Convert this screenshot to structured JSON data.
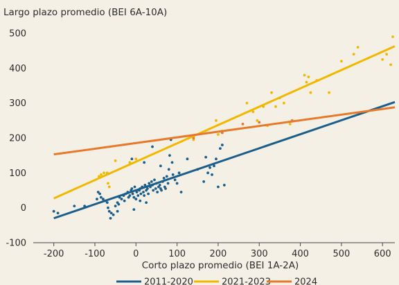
{
  "chart_data": {
    "type": "scatter",
    "title": "",
    "ylabel": "Largo plazo promedio (BEI 6A-10A)",
    "xlabel": "Corto plazo promedio (BEI 1A-2A)",
    "xlim": [
      -250,
      630
    ],
    "ylim": [
      -100,
      500
    ],
    "xticks": [
      -200,
      -100,
      0,
      100,
      200,
      300,
      400,
      500,
      600
    ],
    "yticks": [
      -100,
      0,
      100,
      200,
      300,
      400,
      500
    ],
    "xtick_labels": [
      "-200",
      "-100",
      "0",
      "100",
      "200",
      "300",
      "400",
      "500",
      "600"
    ],
    "ytick_labels": [
      "-100",
      "0",
      "100",
      "200",
      "300",
      "400",
      "500"
    ],
    "grid": false,
    "legend_position": "bottom",
    "series": [
      {
        "name": "2011-2020",
        "color": "#1b5e8c",
        "trend": [
          [
            -200,
            -30
          ],
          [
            630,
            303
          ]
        ],
        "points": [
          [
            -200,
            -10
          ],
          [
            -190,
            -15
          ],
          [
            -150,
            5
          ],
          [
            -125,
            5
          ],
          [
            -95,
            25
          ],
          [
            -92,
            45
          ],
          [
            -88,
            40
          ],
          [
            -85,
            30
          ],
          [
            -80,
            25
          ],
          [
            -75,
            20
          ],
          [
            -70,
            15
          ],
          [
            -68,
            0
          ],
          [
            -65,
            -10
          ],
          [
            -62,
            -30
          ],
          [
            -60,
            -15
          ],
          [
            -55,
            -20
          ],
          [
            -50,
            5
          ],
          [
            -45,
            15
          ],
          [
            -42,
            10
          ],
          [
            -40,
            30
          ],
          [
            -35,
            25
          ],
          [
            -30,
            35
          ],
          [
            -28,
            20
          ],
          [
            -25,
            40
          ],
          [
            -20,
            45
          ],
          [
            -18,
            30
          ],
          [
            -15,
            35
          ],
          [
            -12,
            50
          ],
          [
            -10,
            55
          ],
          [
            -8,
            40
          ],
          [
            -5,
            30
          ],
          [
            -3,
            60
          ],
          [
            0,
            25
          ],
          [
            2,
            45
          ],
          [
            5,
            35
          ],
          [
            8,
            50
          ],
          [
            10,
            55
          ],
          [
            12,
            40
          ],
          [
            15,
            60
          ],
          [
            18,
            45
          ],
          [
            20,
            35
          ],
          [
            22,
            65
          ],
          [
            25,
            50
          ],
          [
            28,
            55
          ],
          [
            30,
            40
          ],
          [
            32,
            70
          ],
          [
            35,
            60
          ],
          [
            38,
            75
          ],
          [
            40,
            65
          ],
          [
            42,
            50
          ],
          [
            45,
            80
          ],
          [
            48,
            55
          ],
          [
            50,
            70
          ],
          [
            52,
            45
          ],
          [
            55,
            60
          ],
          [
            58,
            65
          ],
          [
            60,
            55
          ],
          [
            62,
            50
          ],
          [
            65,
            75
          ],
          [
            68,
            85
          ],
          [
            70,
            60
          ],
          [
            72,
            55
          ],
          [
            75,
            90
          ],
          [
            78,
            70
          ],
          [
            80,
            110
          ],
          [
            82,
            150
          ],
          [
            85,
            195
          ],
          [
            88,
            130
          ],
          [
            90,
            95
          ],
          [
            95,
            80
          ],
          [
            100,
            70
          ],
          [
            105,
            100
          ],
          [
            110,
            45
          ],
          [
            -10,
            140
          ],
          [
            20,
            130
          ],
          [
            40,
            175
          ],
          [
            60,
            120
          ],
          [
            125,
            140
          ],
          [
            150,
            110
          ],
          [
            165,
            75
          ],
          [
            170,
            145
          ],
          [
            175,
            100
          ],
          [
            180,
            115
          ],
          [
            185,
            95
          ],
          [
            190,
            120
          ],
          [
            195,
            140
          ],
          [
            200,
            60
          ],
          [
            205,
            170
          ],
          [
            210,
            180
          ],
          [
            215,
            65
          ],
          [
            -5,
            -5
          ],
          [
            10,
            20
          ],
          [
            25,
            15
          ],
          [
            -45,
            -10
          ]
        ]
      },
      {
        "name": "2021-2023",
        "color": "#f2b800",
        "trend": [
          [
            -200,
            27
          ],
          [
            630,
            463
          ]
        ],
        "points": [
          [
            -90,
            90
          ],
          [
            -85,
            95
          ],
          [
            -78,
            100
          ],
          [
            -70,
            100
          ],
          [
            -68,
            70
          ],
          [
            -65,
            60
          ],
          [
            -50,
            135
          ],
          [
            -15,
            130
          ],
          [
            0,
            140
          ],
          [
            140,
            195
          ],
          [
            195,
            250
          ],
          [
            200,
            210
          ],
          [
            210,
            220
          ],
          [
            270,
            300
          ],
          [
            285,
            275
          ],
          [
            295,
            250
          ],
          [
            310,
            290
          ],
          [
            320,
            235
          ],
          [
            330,
            330
          ],
          [
            340,
            290
          ],
          [
            350,
            315
          ],
          [
            360,
            300
          ],
          [
            375,
            240
          ],
          [
            410,
            380
          ],
          [
            415,
            360
          ],
          [
            420,
            375
          ],
          [
            425,
            330
          ],
          [
            440,
            365
          ],
          [
            470,
            330
          ],
          [
            500,
            420
          ],
          [
            530,
            440
          ],
          [
            540,
            460
          ],
          [
            600,
            425
          ],
          [
            610,
            440
          ],
          [
            620,
            410
          ],
          [
            625,
            490
          ]
        ]
      },
      {
        "name": "2024",
        "color": "#e8792b",
        "trend": [
          [
            -200,
            153
          ],
          [
            630,
            288
          ]
        ],
        "points": [
          [
            140,
            200
          ],
          [
            210,
            215
          ],
          [
            260,
            240
          ],
          [
            300,
            245
          ],
          [
            380,
            250
          ]
        ]
      }
    ]
  }
}
